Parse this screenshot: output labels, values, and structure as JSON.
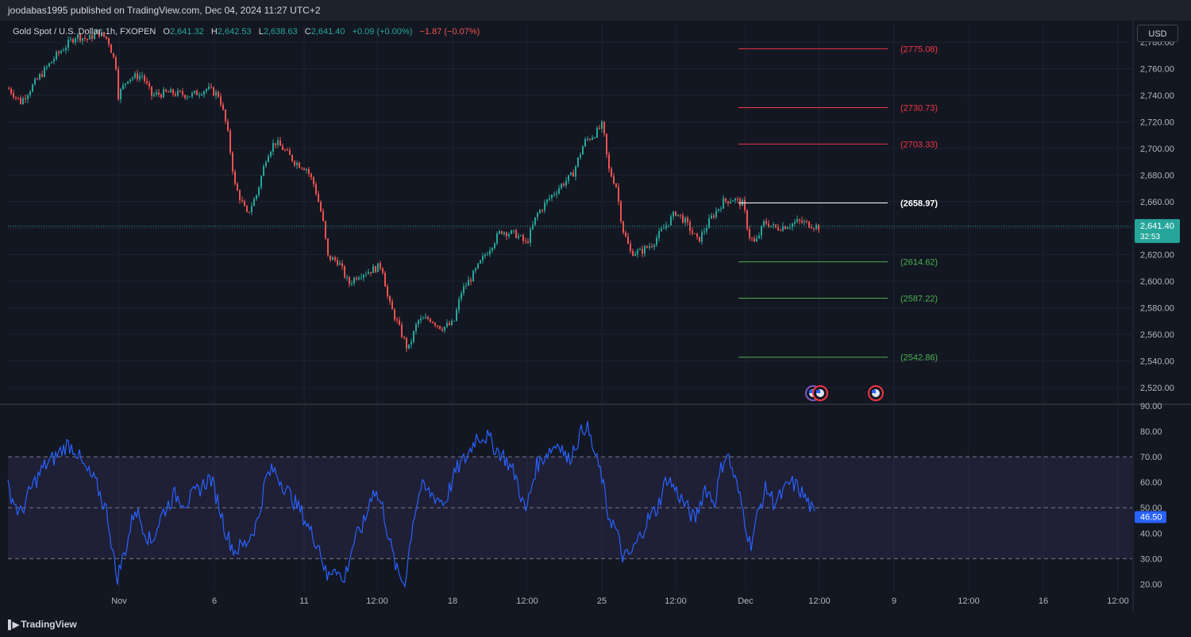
{
  "header": {
    "publish_line": "joodabas1995 published on TradingView.com, Dec 04, 2024 11:27 UTC+2",
    "symbol": "Gold Spot / U.S. Dollar, 1h, FXOPEN",
    "ohlc": {
      "o_label": "O",
      "o": "2,641.32",
      "h_label": "H",
      "h": "2,642.53",
      "l_label": "L",
      "l": "2,638.63",
      "c_label": "C",
      "c": "2,641.40",
      "change": "+0.09 (+0.00%)",
      "change2": "−1.87 (−0.07%)"
    }
  },
  "currency_button": "USD",
  "branding": "TradingView",
  "colors": {
    "up": "#26a69a",
    "down": "#ef5350",
    "background": "#131722",
    "rsi": "#2962ff",
    "resistance": "#f23645",
    "support": "#4caf50",
    "pivot": "#ffffff"
  },
  "chart_data": [
    {
      "type": "candlestick",
      "title": "Gold Spot / U.S. Dollar, 1h, FXOPEN",
      "ylim": [
        2508,
        2795
      ],
      "y_ticks": [
        "2,520.00",
        "2,540.00",
        "2,560.00",
        "2,580.00",
        "2,600.00",
        "2,620.00",
        "2,640.00",
        "2,660.00",
        "2,680.00",
        "2,700.00",
        "2,720.00",
        "2,740.00",
        "2,760.00",
        "2,780.00"
      ],
      "y_tick_values": [
        2520,
        2540,
        2560,
        2580,
        2600,
        2620,
        2640,
        2660,
        2680,
        2700,
        2720,
        2740,
        2760,
        2780
      ],
      "x_ticks": [
        "Nov",
        "6",
        "11",
        "12:00",
        "18",
        "12:00",
        "25",
        "12:00",
        "Dec",
        "12:00",
        "9",
        "12:00",
        "16",
        "12:00"
      ],
      "x_tick_positions_bars": [
        140,
        260,
        373,
        465,
        560,
        654,
        748,
        841,
        929,
        1022,
        1116,
        1210,
        1304,
        1398
      ],
      "last_price": "2,641.40",
      "countdown": "32:53",
      "price_path": [
        [
          0,
          2745
        ],
        [
          15,
          2735
        ],
        [
          40,
          2755
        ],
        [
          60,
          2770
        ],
        [
          85,
          2785
        ],
        [
          100,
          2782
        ],
        [
          112,
          2788
        ],
        [
          125,
          2782
        ],
        [
          135,
          2762
        ],
        [
          138,
          2740
        ],
        [
          150,
          2753
        ],
        [
          168,
          2755
        ],
        [
          180,
          2740
        ],
        [
          200,
          2742
        ],
        [
          230,
          2740
        ],
        [
          250,
          2745
        ],
        [
          265,
          2740
        ],
        [
          275,
          2715
        ],
        [
          285,
          2672
        ],
        [
          300,
          2650
        ],
        [
          312,
          2665
        ],
        [
          325,
          2695
        ],
        [
          335,
          2705
        ],
        [
          345,
          2700
        ],
        [
          360,
          2690
        ],
        [
          375,
          2685
        ],
        [
          385,
          2672
        ],
        [
          395,
          2648
        ],
        [
          402,
          2618
        ],
        [
          415,
          2615
        ],
        [
          428,
          2598
        ],
        [
          440,
          2605
        ],
        [
          455,
          2608
        ],
        [
          470,
          2612
        ],
        [
          478,
          2585
        ],
        [
          485,
          2575
        ],
        [
          495,
          2560
        ],
        [
          503,
          2548
        ],
        [
          515,
          2570
        ],
        [
          530,
          2572
        ],
        [
          545,
          2565
        ],
        [
          560,
          2568
        ],
        [
          570,
          2592
        ],
        [
          585,
          2605
        ],
        [
          600,
          2620
        ],
        [
          620,
          2638
        ],
        [
          640,
          2635
        ],
        [
          652,
          2628
        ],
        [
          665,
          2650
        ],
        [
          680,
          2662
        ],
        [
          695,
          2672
        ],
        [
          710,
          2680
        ],
        [
          725,
          2705
        ],
        [
          740,
          2712
        ],
        [
          748,
          2718
        ],
        [
          755,
          2685
        ],
        [
          765,
          2672
        ],
        [
          773,
          2640
        ],
        [
          783,
          2622
        ],
        [
          795,
          2622
        ],
        [
          810,
          2628
        ],
        [
          825,
          2640
        ],
        [
          840,
          2652
        ],
        [
          852,
          2645
        ],
        [
          868,
          2630
        ],
        [
          885,
          2648
        ],
        [
          900,
          2660
        ],
        [
          912,
          2662
        ],
        [
          925,
          2658
        ],
        [
          932,
          2635
        ],
        [
          940,
          2628
        ],
        [
          952,
          2645
        ],
        [
          965,
          2640
        ],
        [
          980,
          2642
        ],
        [
          995,
          2645
        ],
        [
          1008,
          2643
        ],
        [
          1020,
          2641
        ]
      ],
      "levels": [
        {
          "label": "(2775.08)",
          "value": 2775.08,
          "kind": "resistance"
        },
        {
          "label": "(2730.73)",
          "value": 2730.73,
          "kind": "resistance"
        },
        {
          "label": "(2703.33)",
          "value": 2703.33,
          "kind": "resistance"
        },
        {
          "label": "(2658.97)",
          "value": 2658.97,
          "kind": "pivot"
        },
        {
          "label": "(2614.62)",
          "value": 2614.62,
          "kind": "support"
        },
        {
          "label": "(2587.22)",
          "value": 2587.22,
          "kind": "support"
        },
        {
          "label": "(2542.86)",
          "value": 2542.86,
          "kind": "support"
        }
      ]
    },
    {
      "type": "line",
      "title": "",
      "ylim": [
        17,
        90
      ],
      "y_ticks": [
        "20.00",
        "30.00",
        "40.00",
        "50.00",
        "60.00",
        "70.00",
        "80.00",
        "90.00"
      ],
      "y_tick_values": [
        20,
        30,
        40,
        50,
        60,
        70,
        80,
        90
      ],
      "bands": [
        30,
        50,
        70
      ],
      "last_value": "46.50",
      "rsi_path": [
        [
          0,
          58
        ],
        [
          15,
          47
        ],
        [
          30,
          58
        ],
        [
          45,
          66
        ],
        [
          60,
          70
        ],
        [
          75,
          75
        ],
        [
          85,
          73
        ],
        [
          95,
          66
        ],
        [
          110,
          60
        ],
        [
          125,
          48
        ],
        [
          137,
          22
        ],
        [
          150,
          36
        ],
        [
          160,
          50
        ],
        [
          170,
          43
        ],
        [
          180,
          36
        ],
        [
          195,
          48
        ],
        [
          210,
          55
        ],
        [
          225,
          52
        ],
        [
          240,
          57
        ],
        [
          255,
          62
        ],
        [
          265,
          52
        ],
        [
          275,
          40
        ],
        [
          285,
          33
        ],
        [
          300,
          36
        ],
        [
          315,
          45
        ],
        [
          325,
          62
        ],
        [
          335,
          65
        ],
        [
          345,
          60
        ],
        [
          355,
          55
        ],
        [
          370,
          48
        ],
        [
          382,
          40
        ],
        [
          392,
          35
        ],
        [
          402,
          22
        ],
        [
          412,
          28
        ],
        [
          422,
          20
        ],
        [
          435,
          36
        ],
        [
          450,
          45
        ],
        [
          460,
          58
        ],
        [
          472,
          50
        ],
        [
          482,
          35
        ],
        [
          490,
          25
        ],
        [
          500,
          20
        ],
        [
          510,
          45
        ],
        [
          520,
          58
        ],
        [
          535,
          55
        ],
        [
          550,
          52
        ],
        [
          565,
          65
        ],
        [
          578,
          70
        ],
        [
          590,
          78
        ],
        [
          603,
          78
        ],
        [
          615,
          73
        ],
        [
          625,
          70
        ],
        [
          640,
          62
        ],
        [
          652,
          48
        ],
        [
          665,
          66
        ],
        [
          680,
          72
        ],
        [
          695,
          76
        ],
        [
          705,
          68
        ],
        [
          715,
          75
        ],
        [
          728,
          83
        ],
        [
          738,
          72
        ],
        [
          748,
          62
        ],
        [
          755,
          48
        ],
        [
          765,
          42
        ],
        [
          775,
          30
        ],
        [
          785,
          32
        ],
        [
          795,
          38
        ],
        [
          805,
          45
        ],
        [
          818,
          50
        ],
        [
          830,
          62
        ],
        [
          845,
          55
        ],
        [
          855,
          50
        ],
        [
          865,
          45
        ],
        [
          878,
          58
        ],
        [
          890,
          52
        ],
        [
          898,
          65
        ],
        [
          905,
          72
        ],
        [
          915,
          62
        ],
        [
          925,
          50
        ],
        [
          935,
          35
        ],
        [
          945,
          48
        ],
        [
          955,
          58
        ],
        [
          965,
          52
        ],
        [
          975,
          55
        ],
        [
          985,
          60
        ],
        [
          995,
          58
        ],
        [
          1008,
          52
        ],
        [
          1016,
          46.5
        ]
      ]
    }
  ]
}
